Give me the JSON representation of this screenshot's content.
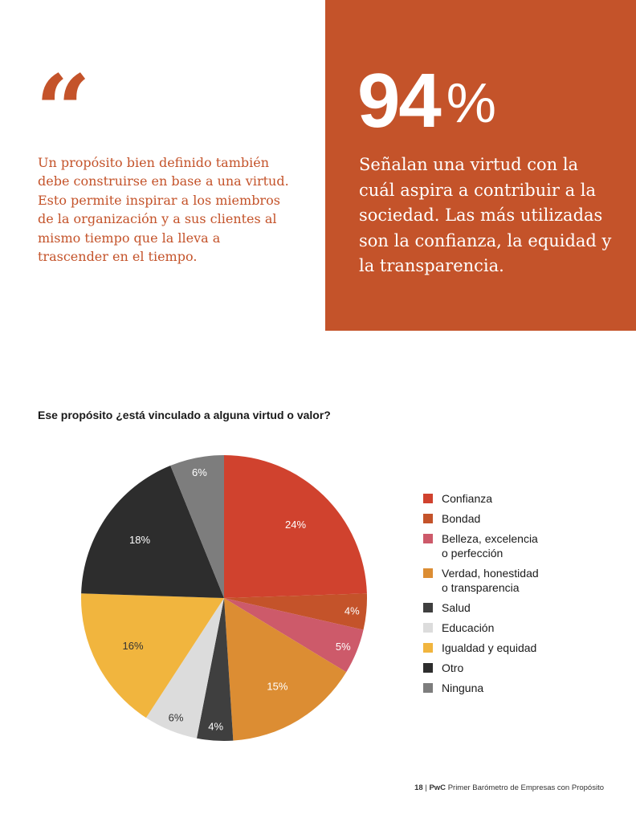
{
  "quote": {
    "mark": "“",
    "text": "Un propósito bien definido también debe construirse en base a una virtud. Esto permite inspirar a los miembros de la organización y a sus clientes al mismo tiempo que la lleva a trascender en el tiempo."
  },
  "highlight": {
    "number": "94",
    "percent_sign": "%",
    "text": "Señalan una virtud con la cuál aspira a contribuir a la sociedad. Las más utilizadas son la confianza, la equidad y la transparencia.",
    "background_color": "#c4532a"
  },
  "chart_data": {
    "type": "pie",
    "title": "Ese propósito ¿está vinculado a alguna virtud o valor?",
    "start_angle_deg": 0,
    "direction": "clockwise",
    "legend_position": "right",
    "slices": [
      {
        "label": "Confianza",
        "value": 24,
        "display": "24%",
        "color": "#d0422e",
        "text_color": "#ffffff"
      },
      {
        "label": "Bondad",
        "value": 4,
        "display": "4%",
        "color": "#c4532a",
        "text_color": "#ffffff"
      },
      {
        "label": "Belleza, excelencia\no perfección",
        "value": 5,
        "display": "5%",
        "color": "#cd5a6a",
        "text_color": "#ffffff"
      },
      {
        "label": "Verdad, honestidad\no transparencia",
        "value": 15,
        "display": "15%",
        "color": "#dc8d33",
        "text_color": "#ffffff"
      },
      {
        "label": "Salud",
        "value": 4,
        "display": "4%",
        "color": "#3f3f3f",
        "text_color": "#ffffff"
      },
      {
        "label": "Educación",
        "value": 6,
        "display": "6%",
        "color": "#dcdcdc",
        "text_color": "#333333"
      },
      {
        "label": "Igualdad y equidad",
        "value": 16,
        "display": "16%",
        "color": "#f1b53e",
        "text_color": "#333333"
      },
      {
        "label": "Otro",
        "value": 18,
        "display": "18%",
        "color": "#2d2d2d",
        "text_color": "#ffffff"
      },
      {
        "label": "Ninguna",
        "value": 6,
        "display": "6%",
        "color": "#7d7d7d",
        "text_color": "#ffffff"
      }
    ]
  },
  "footer": {
    "page_number": "18",
    "brand": "PwC",
    "title": "Primer Barómetro de Empresas con Propósito"
  }
}
